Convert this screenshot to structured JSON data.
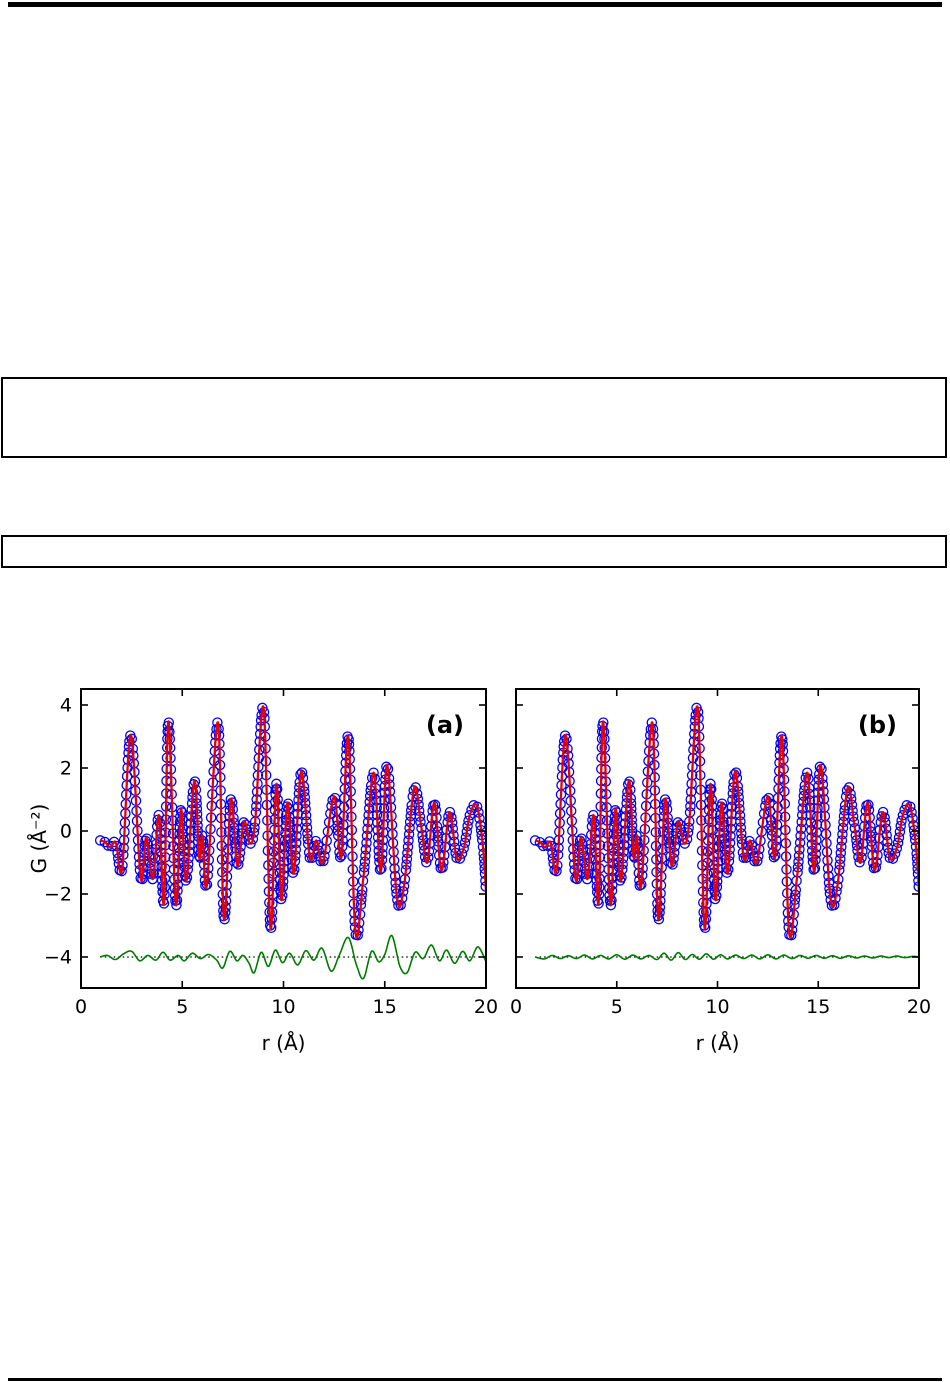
{
  "figure": {
    "ylabel": "G (Å⁻²)",
    "xlabel": "r (Å)",
    "panel_labels": [
      "(a)",
      "(b)"
    ],
    "colors": {
      "data": "#0000ee",
      "fit": "#e80000",
      "difference": "#007a00",
      "baseline": "#000000",
      "frame": "#000000"
    }
  },
  "chart_data": [
    {
      "type": "scatter+line",
      "annotation": "(a)",
      "xlabel": "r (Å)",
      "ylabel": "G (Å⁻²)",
      "xlim": [
        0,
        20
      ],
      "ylim": [
        -5.0,
        4.5
      ],
      "x_ticks": [
        0,
        5,
        10,
        15,
        20
      ],
      "x_tick_labels": [
        "0",
        "5",
        "10",
        "15",
        "20"
      ],
      "y_ticks": [
        -4,
        -2,
        0,
        2,
        4
      ],
      "y_tick_labels": [
        "−4",
        "−2",
        "0",
        "2",
        "4"
      ],
      "show_y_tick_labels": true,
      "show_ylabel": true,
      "grid": false,
      "legend": "none",
      "series": [
        {
          "name": "observed-data",
          "style": "open-circle-markers",
          "color": "#0000ee",
          "points": [
            [
              0.95,
              -0.3
            ],
            [
              1.2,
              -0.36
            ],
            [
              1.45,
              -0.52
            ],
            [
              1.72,
              -0.36
            ],
            [
              2.03,
              -1.2
            ],
            [
              2.46,
              3.05
            ],
            [
              2.95,
              -1.5
            ],
            [
              3.22,
              -0.2
            ],
            [
              3.55,
              -1.52
            ],
            [
              3.85,
              0.5
            ],
            [
              4.1,
              -2.3
            ],
            [
              4.32,
              3.48
            ],
            [
              4.68,
              -2.32
            ],
            [
              4.94,
              0.7
            ],
            [
              5.2,
              -1.6
            ],
            [
              5.6,
              1.6
            ],
            [
              5.84,
              -0.85
            ],
            [
              6.0,
              -0.15
            ],
            [
              6.22,
              -1.7
            ],
            [
              6.76,
              3.45
            ],
            [
              7.06,
              -2.8
            ],
            [
              7.4,
              1.0
            ],
            [
              7.72,
              -1.1
            ],
            [
              8.05,
              0.3
            ],
            [
              8.35,
              -0.4
            ],
            [
              8.6,
              0.3
            ],
            [
              9.02,
              3.9
            ],
            [
              9.36,
              -3.1
            ],
            [
              9.65,
              1.5
            ],
            [
              9.9,
              -2.2
            ],
            [
              10.2,
              0.9
            ],
            [
              10.5,
              -1.35
            ],
            [
              10.88,
              1.9
            ],
            [
              11.3,
              -0.85
            ],
            [
              11.62,
              -0.3
            ],
            [
              11.95,
              -1.0
            ],
            [
              12.5,
              1.1
            ],
            [
              12.85,
              -0.85
            ],
            [
              13.2,
              3.0
            ],
            [
              13.55,
              -3.2
            ],
            [
              13.95,
              -1.45
            ],
            [
              14.45,
              1.85
            ],
            [
              14.8,
              -1.3
            ],
            [
              15.12,
              2.1
            ],
            [
              15.6,
              -2.1
            ],
            [
              15.95,
              -1.75
            ],
            [
              16.45,
              1.35
            ],
            [
              16.8,
              0.15
            ],
            [
              17.1,
              -1.0
            ],
            [
              17.45,
              0.9
            ],
            [
              17.8,
              -1.25
            ],
            [
              18.2,
              0.6
            ],
            [
              18.55,
              -0.85
            ],
            [
              18.9,
              -0.55
            ],
            [
              19.2,
              0.5
            ],
            [
              19.55,
              0.8
            ],
            [
              19.85,
              -0.5
            ],
            [
              20.0,
              -1.9
            ]
          ]
        },
        {
          "name": "calculated-fit",
          "style": "solid-line",
          "color": "#e80000",
          "points_same_as": "observed-data"
        },
        {
          "name": "difference-curve",
          "style": "solid-line",
          "color": "#007a00",
          "points": [
            [
              0.95,
              -4.0
            ],
            [
              1.3,
              -3.95
            ],
            [
              1.7,
              -4.08
            ],
            [
              2.1,
              -3.9
            ],
            [
              2.5,
              -3.82
            ],
            [
              2.9,
              -4.12
            ],
            [
              3.3,
              -3.95
            ],
            [
              3.7,
              -4.1
            ],
            [
              4.05,
              -3.85
            ],
            [
              4.4,
              -4.1
            ],
            [
              4.8,
              -3.95
            ],
            [
              5.1,
              -4.12
            ],
            [
              5.5,
              -3.88
            ],
            [
              5.9,
              -4.05
            ],
            [
              6.3,
              -3.92
            ],
            [
              6.7,
              -4.1
            ],
            [
              7.0,
              -4.35
            ],
            [
              7.35,
              -3.82
            ],
            [
              7.7,
              -4.12
            ],
            [
              8.0,
              -3.95
            ],
            [
              8.3,
              -4.2
            ],
            [
              8.55,
              -4.5
            ],
            [
              8.9,
              -3.85
            ],
            [
              9.25,
              -4.3
            ],
            [
              9.6,
              -3.78
            ],
            [
              9.95,
              -4.18
            ],
            [
              10.3,
              -3.88
            ],
            [
              10.7,
              -4.25
            ],
            [
              11.1,
              -3.8
            ],
            [
              11.5,
              -4.1
            ],
            [
              11.9,
              -3.72
            ],
            [
              12.35,
              -4.45
            ],
            [
              12.75,
              -3.95
            ],
            [
              13.2,
              -3.38
            ],
            [
              13.6,
              -4.25
            ],
            [
              13.95,
              -4.68
            ],
            [
              14.35,
              -3.82
            ],
            [
              14.7,
              -4.15
            ],
            [
              15.0,
              -3.92
            ],
            [
              15.35,
              -3.32
            ],
            [
              15.75,
              -4.3
            ],
            [
              16.1,
              -4.5
            ],
            [
              16.5,
              -3.85
            ],
            [
              16.9,
              -4.05
            ],
            [
              17.3,
              -3.62
            ],
            [
              17.7,
              -4.12
            ],
            [
              18.05,
              -3.78
            ],
            [
              18.45,
              -4.2
            ],
            [
              18.85,
              -3.82
            ],
            [
              19.2,
              -4.12
            ],
            [
              19.6,
              -3.68
            ],
            [
              20.0,
              -4.15
            ]
          ]
        },
        {
          "name": "difference-baseline",
          "style": "dotted-line",
          "color": "#000000",
          "y_const": -4,
          "x_range": [
            0.95,
            20
          ]
        }
      ]
    },
    {
      "type": "scatter+line",
      "annotation": "(b)",
      "xlabel": "r (Å)",
      "ylabel": "G (Å⁻²)",
      "xlim": [
        0,
        20
      ],
      "ylim": [
        -5.0,
        4.5
      ],
      "x_ticks": [
        0,
        5,
        10,
        15,
        20
      ],
      "x_tick_labels": [
        "0",
        "5",
        "10",
        "15",
        "20"
      ],
      "y_ticks": [
        -4,
        -2,
        0,
        2,
        4
      ],
      "y_tick_labels": [
        "−4",
        "−2",
        "0",
        "2",
        "4"
      ],
      "show_y_tick_labels": false,
      "show_ylabel": false,
      "grid": false,
      "legend": "none",
      "series": [
        {
          "name": "observed-data",
          "style": "open-circle-markers",
          "color": "#0000ee",
          "points": [
            [
              0.95,
              -0.3
            ],
            [
              1.2,
              -0.36
            ],
            [
              1.45,
              -0.52
            ],
            [
              1.72,
              -0.36
            ],
            [
              2.03,
              -1.2
            ],
            [
              2.46,
              3.05
            ],
            [
              2.95,
              -1.5
            ],
            [
              3.22,
              -0.2
            ],
            [
              3.55,
              -1.52
            ],
            [
              3.85,
              0.5
            ],
            [
              4.1,
              -2.3
            ],
            [
              4.32,
              3.48
            ],
            [
              4.68,
              -2.32
            ],
            [
              4.94,
              0.7
            ],
            [
              5.2,
              -1.6
            ],
            [
              5.6,
              1.6
            ],
            [
              5.84,
              -0.85
            ],
            [
              6.0,
              -0.15
            ],
            [
              6.22,
              -1.7
            ],
            [
              6.76,
              3.45
            ],
            [
              7.06,
              -2.8
            ],
            [
              7.4,
              1.0
            ],
            [
              7.72,
              -1.1
            ],
            [
              8.05,
              0.3
            ],
            [
              8.35,
              -0.4
            ],
            [
              8.6,
              0.3
            ],
            [
              9.02,
              3.9
            ],
            [
              9.36,
              -3.1
            ],
            [
              9.65,
              1.5
            ],
            [
              9.9,
              -2.2
            ],
            [
              10.2,
              0.9
            ],
            [
              10.5,
              -1.35
            ],
            [
              10.88,
              1.9
            ],
            [
              11.3,
              -0.85
            ],
            [
              11.62,
              -0.3
            ],
            [
              11.95,
              -1.0
            ],
            [
              12.5,
              1.1
            ],
            [
              12.85,
              -0.85
            ],
            [
              13.2,
              3.0
            ],
            [
              13.55,
              -3.2
            ],
            [
              13.95,
              -1.45
            ],
            [
              14.45,
              1.85
            ],
            [
              14.8,
              -1.3
            ],
            [
              15.12,
              2.1
            ],
            [
              15.6,
              -2.1
            ],
            [
              15.95,
              -1.75
            ],
            [
              16.45,
              1.35
            ],
            [
              16.8,
              0.15
            ],
            [
              17.1,
              -1.0
            ],
            [
              17.45,
              0.9
            ],
            [
              17.8,
              -1.25
            ],
            [
              18.2,
              0.6
            ],
            [
              18.55,
              -0.85
            ],
            [
              18.9,
              -0.55
            ],
            [
              19.2,
              0.5
            ],
            [
              19.55,
              0.8
            ],
            [
              19.85,
              -0.5
            ],
            [
              20.0,
              -1.9
            ]
          ]
        },
        {
          "name": "calculated-fit",
          "style": "solid-line",
          "color": "#e80000",
          "points_same_as": "observed-data"
        },
        {
          "name": "difference-curve",
          "style": "solid-line",
          "color": "#007a00",
          "points": [
            [
              0.95,
              -4.0
            ],
            [
              1.4,
              -4.06
            ],
            [
              1.8,
              -3.95
            ],
            [
              2.2,
              -4.05
            ],
            [
              2.6,
              -3.96
            ],
            [
              3.0,
              -4.05
            ],
            [
              3.4,
              -3.94
            ],
            [
              3.8,
              -4.06
            ],
            [
              4.2,
              -3.95
            ],
            [
              4.6,
              -4.06
            ],
            [
              5.0,
              -3.93
            ],
            [
              5.4,
              -4.07
            ],
            [
              5.8,
              -3.94
            ],
            [
              6.2,
              -4.06
            ],
            [
              6.6,
              -3.95
            ],
            [
              7.0,
              -4.08
            ],
            [
              7.35,
              -3.88
            ],
            [
              7.7,
              -4.1
            ],
            [
              8.05,
              -3.86
            ],
            [
              8.4,
              -4.08
            ],
            [
              8.75,
              -3.92
            ],
            [
              9.1,
              -4.07
            ],
            [
              9.45,
              -3.9
            ],
            [
              9.8,
              -4.07
            ],
            [
              10.15,
              -3.93
            ],
            [
              10.5,
              -4.06
            ],
            [
              10.9,
              -3.94
            ],
            [
              11.3,
              -4.05
            ],
            [
              11.7,
              -3.94
            ],
            [
              12.1,
              -4.06
            ],
            [
              12.5,
              -3.93
            ],
            [
              12.9,
              -4.06
            ],
            [
              13.3,
              -3.94
            ],
            [
              13.7,
              -4.05
            ],
            [
              14.1,
              -3.95
            ],
            [
              14.5,
              -4.04
            ],
            [
              14.9,
              -3.95
            ],
            [
              15.3,
              -4.04
            ],
            [
              15.7,
              -3.96
            ],
            [
              16.1,
              -4.04
            ],
            [
              16.5,
              -3.96
            ],
            [
              16.9,
              -4.03
            ],
            [
              17.3,
              -3.97
            ],
            [
              17.7,
              -4.03
            ],
            [
              18.1,
              -3.97
            ],
            [
              18.5,
              -4.02
            ],
            [
              18.9,
              -3.97
            ],
            [
              19.3,
              -4.02
            ],
            [
              19.7,
              -3.98
            ],
            [
              20.0,
              -4.0
            ]
          ]
        },
        {
          "name": "difference-baseline",
          "style": "dotted-line",
          "color": "#000000",
          "y_const": -4,
          "x_range": [
            0.95,
            20
          ]
        }
      ]
    }
  ]
}
